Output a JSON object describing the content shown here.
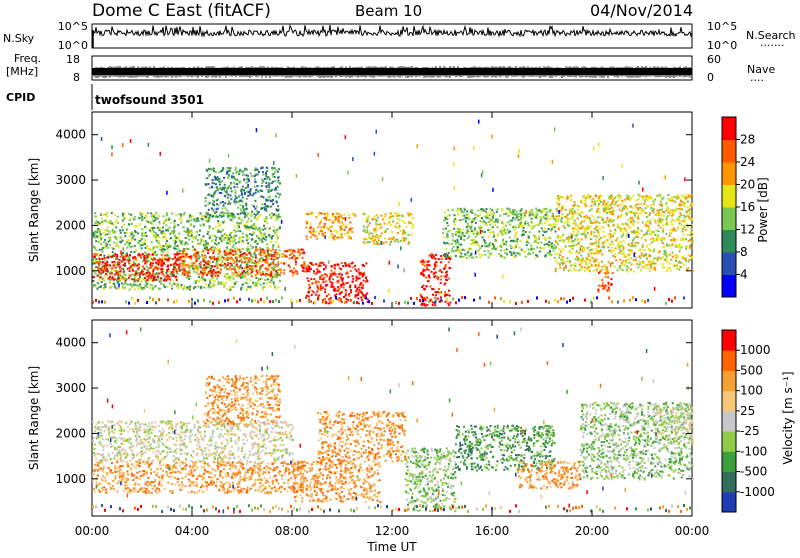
{
  "header": {
    "station": "Dome C East (fitACF)",
    "beam": "Beam 10",
    "date": "04/Nov/2014"
  },
  "top_panels": {
    "nsky": {
      "label": "N.Sky",
      "ticks": [
        "10^5",
        "10^0"
      ],
      "right_ticks": [
        "10^5",
        "10^0"
      ],
      "right_label": "N.Search",
      "right_dots": "·······"
    },
    "freq": {
      "label_line1": "Freq.",
      "label_line2": "[MHz]",
      "ticks": [
        "18",
        "8"
      ],
      "right_ticks": [
        "60",
        "0"
      ],
      "right_label": "Nave",
      "right_dots": "····"
    },
    "cpid": {
      "label": "CPID",
      "program": "twofsound 3501"
    }
  },
  "x_axis": {
    "label": "Time UT",
    "ticks": [
      "00:00",
      "04:00",
      "08:00",
      "12:00",
      "16:00",
      "20:00",
      "00:00"
    ]
  },
  "panels": {
    "power": {
      "ylabel": "Slant Range [km]",
      "yticks": [
        "4000",
        "3000",
        "2000",
        "1000"
      ],
      "colorbar_label": "Power [dB]",
      "colorbar_ticks": [
        "28",
        "24",
        "20",
        "16",
        "12",
        "8",
        "4"
      ]
    },
    "velocity": {
      "ylabel": "Slant Range [km]",
      "yticks": [
        "4000",
        "3000",
        "2000",
        "1000"
      ],
      "colorbar_label": "Velocity [m s⁻¹]",
      "colorbar_ticks": [
        "1000",
        "500",
        "100",
        "25",
        "-25",
        "-100",
        "-500",
        "-1000"
      ]
    }
  },
  "colors": {
    "power_scale": [
      "#0000ff",
      "#2850b4",
      "#2e8b57",
      "#78c850",
      "#e6e614",
      "#ff9600",
      "#ff5a00",
      "#ff0000"
    ],
    "velocity_scale": [
      "#1e3cb4",
      "#2e6e5a",
      "#3ca03c",
      "#8ccc46",
      "#c8c8c8",
      "#f5c878",
      "#f5a032",
      "#ff6400",
      "#ff0000"
    ]
  },
  "chart_data": [
    {
      "type": "heatmap",
      "title": "Power",
      "x_range_hours": [
        0,
        24
      ],
      "ylim": [
        180,
        4500
      ],
      "colorbar": {
        "min": 0,
        "max": 32,
        "ticks": [
          4,
          8,
          12,
          16,
          20,
          24,
          28
        ]
      },
      "regions": [
        {
          "t0": 0,
          "t1": 7.5,
          "r0": 600,
          "r1": 2300,
          "level": 3
        },
        {
          "t0": 0,
          "t1": 3.5,
          "r0": 800,
          "r1": 1400,
          "level": 7
        },
        {
          "t0": 3.5,
          "t1": 8.5,
          "r0": 900,
          "r1": 1500,
          "level": 6
        },
        {
          "t0": 4.5,
          "t1": 7.5,
          "r0": 2200,
          "r1": 3300,
          "level": 2
        },
        {
          "t0": 8.5,
          "t1": 10.5,
          "r0": 1700,
          "r1": 2300,
          "level": 5
        },
        {
          "t0": 8.5,
          "t1": 11,
          "r0": 300,
          "r1": 1200,
          "level": 7
        },
        {
          "t0": 10.8,
          "t1": 12.8,
          "r0": 1600,
          "r1": 2300,
          "level": 4
        },
        {
          "t0": 13.1,
          "t1": 14.3,
          "r0": 250,
          "r1": 1400,
          "level": 7
        },
        {
          "t0": 14,
          "t1": 18.5,
          "r0": 1300,
          "r1": 2400,
          "level": 3
        },
        {
          "t0": 18.5,
          "t1": 24,
          "r0": 1000,
          "r1": 2700,
          "level": 4
        },
        {
          "t0": 20.2,
          "t1": 20.8,
          "r0": 550,
          "r1": 1000,
          "level": 6
        }
      ]
    },
    {
      "type": "heatmap",
      "title": "Velocity",
      "x_range_hours": [
        0,
        24
      ],
      "ylim": [
        180,
        4500
      ],
      "colorbar": {
        "ticks": [
          1000,
          500,
          100,
          25,
          -25,
          -100,
          -500,
          -1000
        ]
      },
      "regions": [
        {
          "t0": 0,
          "t1": 8,
          "r0": 1400,
          "r1": 2300,
          "level": 4
        },
        {
          "t0": 0,
          "t1": 8.5,
          "r0": 700,
          "r1": 1400,
          "level": 6
        },
        {
          "t0": 4.5,
          "t1": 7.5,
          "r0": 2200,
          "r1": 3300,
          "level": 6
        },
        {
          "t0": 8,
          "t1": 11.5,
          "r0": 500,
          "r1": 1400,
          "level": 6
        },
        {
          "t0": 9,
          "t1": 12.5,
          "r0": 1400,
          "r1": 2500,
          "level": 6
        },
        {
          "t0": 12.5,
          "t1": 14.5,
          "r0": 300,
          "r1": 1700,
          "level": 3
        },
        {
          "t0": 14.5,
          "t1": 18.5,
          "r0": 1200,
          "r1": 2200,
          "level": 2
        },
        {
          "t0": 17,
          "t1": 19.5,
          "r0": 800,
          "r1": 1400,
          "level": 6
        },
        {
          "t0": 19.5,
          "t1": 24,
          "r0": 1000,
          "r1": 2700,
          "level": 3
        },
        {
          "t0": 22.5,
          "t1": 24,
          "r0": 1800,
          "r1": 2600,
          "level": 4
        }
      ]
    }
  ]
}
